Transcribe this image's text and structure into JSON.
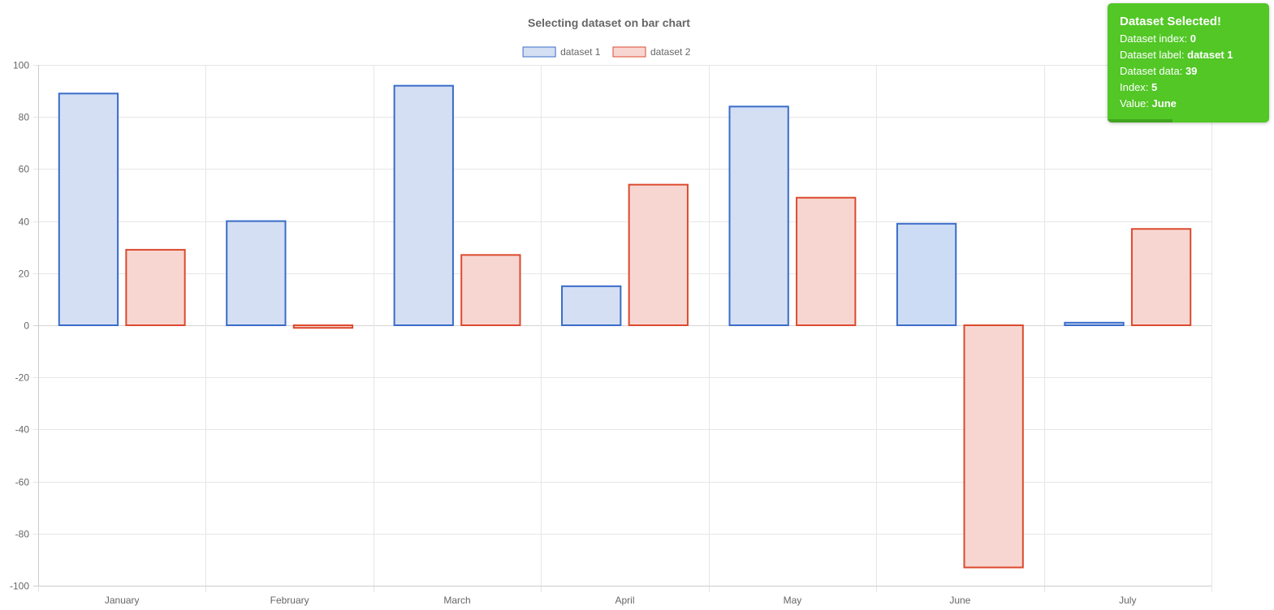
{
  "chart_data": {
    "type": "bar",
    "title": "Selecting dataset on bar chart",
    "categories": [
      "January",
      "February",
      "March",
      "April",
      "May",
      "June",
      "July"
    ],
    "series": [
      {
        "name": "dataset 1",
        "values": [
          89,
          40,
          92,
          15,
          84,
          39,
          1
        ],
        "border_color": "#3a6cc9",
        "fill_color": "#d4dff3"
      },
      {
        "name": "dataset 2",
        "values": [
          29,
          -1,
          27,
          54,
          49,
          -93,
          37
        ],
        "border_color": "#dc4a2e",
        "fill_color": "#f7d6d1"
      }
    ],
    "highlight": {
      "series": 0,
      "index": 5,
      "fill_color": "#cddcf5"
    },
    "ylim": [
      -100,
      100
    ],
    "yticks": [
      100,
      80,
      60,
      40,
      20,
      0,
      -20,
      -40,
      -60,
      -80,
      -100
    ],
    "xlabel": "",
    "ylabel": "",
    "grid": true,
    "legend_position": "top"
  },
  "toast": {
    "title": "Dataset Selected!",
    "bg_color": "#52c726",
    "progress_fraction": 0.4,
    "rows": [
      {
        "label": "Dataset index:",
        "value": "0"
      },
      {
        "label": "Dataset label:",
        "value": "dataset 1"
      },
      {
        "label": "Dataset data:",
        "value": "39"
      },
      {
        "label": "Index:",
        "value": "5"
      },
      {
        "label": "Value:",
        "value": "June"
      }
    ]
  }
}
